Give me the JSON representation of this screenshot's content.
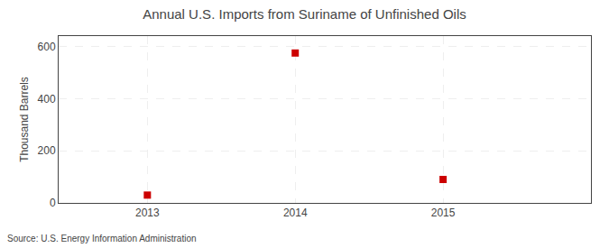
{
  "chart_data": {
    "type": "scatter",
    "title": "Annual U.S. Imports from Suriname of Unfinished Oils",
    "ylabel": "Thousand Barrels",
    "annotation": "Source: U.S. Energy Information Administration",
    "x": [
      2013,
      2014,
      2015
    ],
    "values": [
      30,
      575,
      90
    ],
    "color": "#cc0000",
    "marker": "square",
    "xlim": [
      2012.4,
      2016.0
    ],
    "xticks": [
      2013,
      2014,
      2015
    ],
    "ylim": [
      0,
      640
    ],
    "yticks": [
      0,
      200,
      400,
      600
    ],
    "grid": true
  }
}
